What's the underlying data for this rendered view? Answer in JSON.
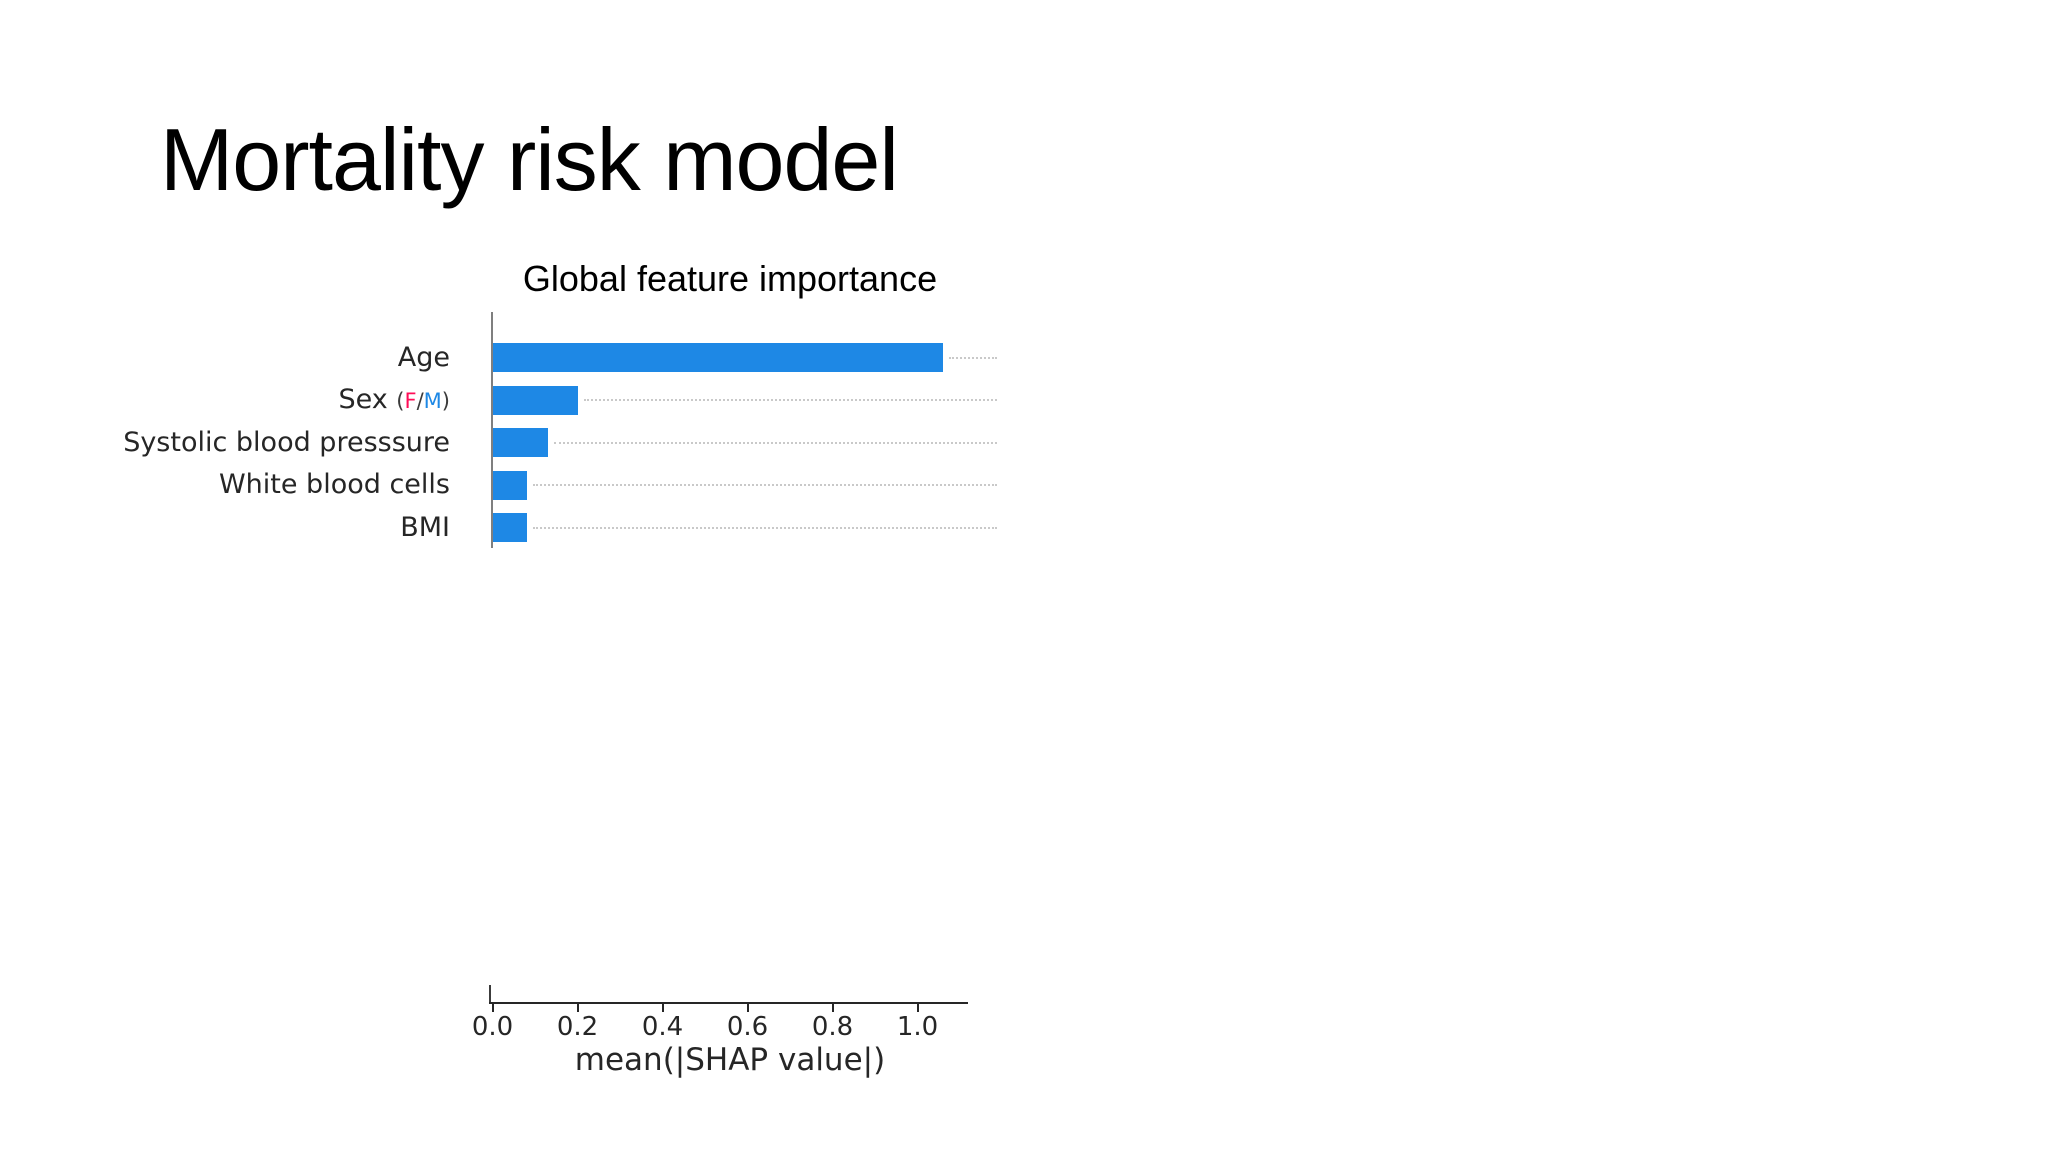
{
  "slide": {
    "title": "Mortality risk model",
    "background_color": "#ffffff"
  },
  "chart_data": {
    "type": "bar",
    "orientation": "horizontal",
    "title": "Global feature importance",
    "xlabel": "mean(|SHAP value|)",
    "categories": [
      "Age",
      "Sex (F/M)",
      "Systolic blood presssure",
      "White blood cells",
      "BMI"
    ],
    "values": [
      1.06,
      0.2,
      0.13,
      0.08,
      0.08
    ],
    "x_ticks": [
      "0.0",
      "0.2",
      "0.4",
      "0.6",
      "0.8",
      "1.0"
    ],
    "x_tick_values": [
      0.0,
      0.2,
      0.4,
      0.6,
      0.8,
      1.0
    ],
    "xlim": [
      0,
      1.12
    ],
    "bar_color": "#1e88e5",
    "grid": "horizontal dotted, light gray, right of bars",
    "legend": "none",
    "label_colors": {
      "Sex (F/M)": {
        "prefix": "Sex ",
        "parts": [
          {
            "text": "(",
            "color": "#3b3b3b"
          },
          {
            "text": "F",
            "color": "#ff0d57"
          },
          {
            "text": "/",
            "color": "#3b3b3b"
          },
          {
            "text": "M",
            "color": "#1e88e5"
          },
          {
            "text": ")",
            "color": "#3b3b3b"
          }
        ]
      }
    }
  }
}
